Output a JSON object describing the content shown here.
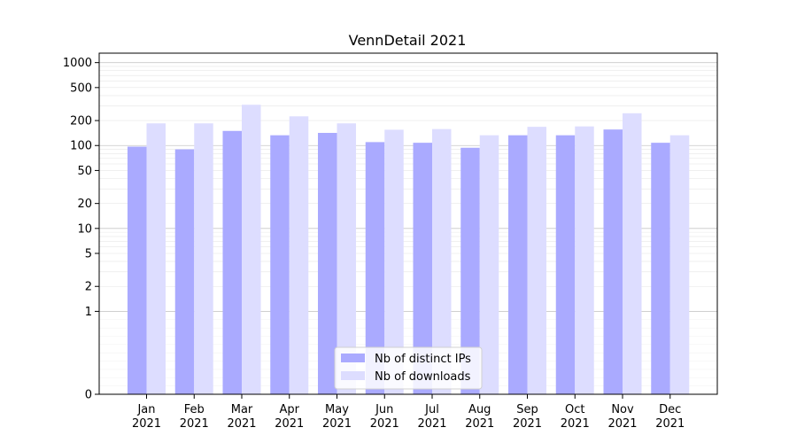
{
  "chart_data": {
    "type": "bar",
    "title": "VennDetail 2021",
    "xlabel": "",
    "ylabel": "",
    "yscale": "symlog",
    "ylim": [
      0,
      1300
    ],
    "yticks": [
      0,
      1,
      2,
      5,
      10,
      20,
      50,
      100,
      200,
      500,
      1000
    ],
    "ytick_labels": [
      "0",
      "1",
      "2",
      "5",
      "10",
      "20",
      "50",
      "100",
      "200",
      "500",
      "1000"
    ],
    "categories": [
      "Jan 2021",
      "Feb 2021",
      "Mar 2021",
      "Apr 2021",
      "May 2021",
      "Jun 2021",
      "Jul 2021",
      "Aug 2021",
      "Sep 2021",
      "Oct 2021",
      "Nov 2021",
      "Dec 2021"
    ],
    "category_lines": [
      [
        "Jan",
        "2021"
      ],
      [
        "Feb",
        "2021"
      ],
      [
        "Mar",
        "2021"
      ],
      [
        "Apr",
        "2021"
      ],
      [
        "May",
        "2021"
      ],
      [
        "Jun",
        "2021"
      ],
      [
        "Jul",
        "2021"
      ],
      [
        "Aug",
        "2021"
      ],
      [
        "Sep",
        "2021"
      ],
      [
        "Oct",
        "2021"
      ],
      [
        "Nov",
        "2021"
      ],
      [
        "Dec",
        "2021"
      ]
    ],
    "series": [
      {
        "name": "Nb of distinct IPs",
        "color": "#aaaaff",
        "values": [
          97,
          90,
          150,
          133,
          142,
          110,
          108,
          94,
          133,
          133,
          156,
          108
        ]
      },
      {
        "name": "Nb of downloads",
        "color": "#ddddff",
        "values": [
          185,
          185,
          310,
          225,
          185,
          155,
          158,
          133,
          168,
          170,
          245,
          133
        ]
      }
    ],
    "grid": true,
    "legend": "lower-center"
  }
}
